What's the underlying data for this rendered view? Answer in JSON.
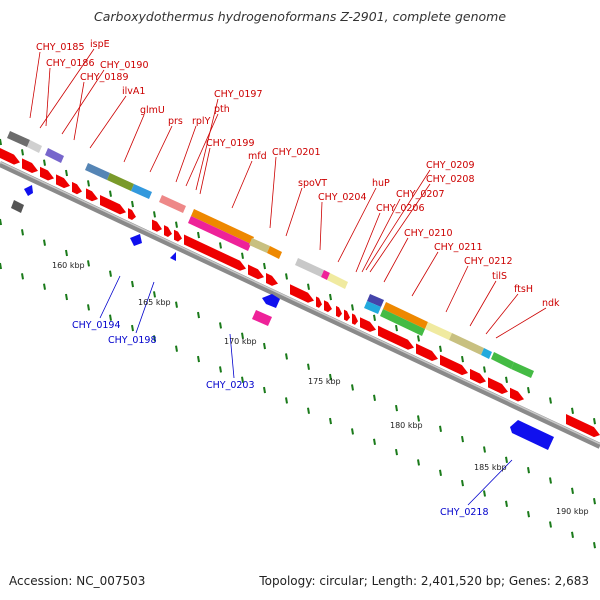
{
  "title": "Carboxydothermus hydrogenoformans Z-2901, complete genome",
  "footer": {
    "accession": "Accession: NC_007503",
    "info": "Topology: circular; Length: 2,401,520 bp; Genes: 2,683"
  },
  "colors": {
    "forward_label": "#cc0000",
    "reverse_label": "#0000cc",
    "forward_gene": "#ee0000",
    "reverse_gene": "#1010ee",
    "tick": "#1a7a1a",
    "backbone": "#8a8a8a"
  },
  "scale_labels": [
    "160 kbp",
    "165 kbp",
    "170 kbp",
    "175 kbp",
    "180 kbp",
    "185 kbp",
    "190 kbp"
  ],
  "forward_labels": [
    "CHY_0185",
    "ispE",
    "CHY_0186",
    "CHY_0190",
    "CHY_0189",
    "ilvA1",
    "glmU",
    "prs",
    "rplY",
    "pth",
    "CHY_0197",
    "CHY_0199",
    "mfd",
    "CHY_0201",
    "spoVT",
    "CHY_0204",
    "huP",
    "CHY_0209",
    "CHY_0208",
    "CHY_0207",
    "CHY_0206",
    "CHY_0210",
    "CHY_0211",
    "CHY_0212",
    "tilS",
    "ftsH",
    "ndk"
  ],
  "reverse_labels": [
    "CHY_0194",
    "CHY_0198",
    "CHY_0203",
    "CHY_0218"
  ]
}
